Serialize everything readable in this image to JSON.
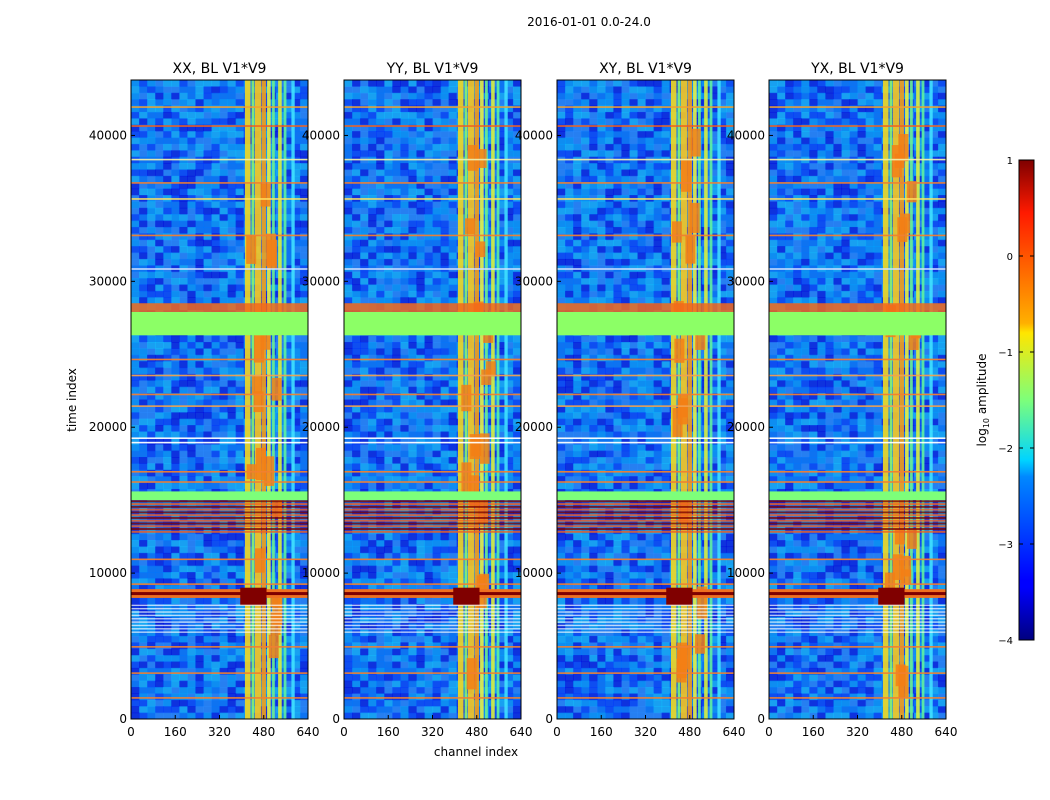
{
  "chart_data": {
    "type": "heatmap",
    "suptitle": "2016-01-01 0.0-24.0",
    "xlabel": "channel index",
    "ylabel": "time index",
    "xlim": [
      0,
      640
    ],
    "ylim": [
      0,
      43800
    ],
    "x_ticks": [
      "0",
      "160",
      "320",
      "480",
      "640"
    ],
    "y_ticks": [
      "0",
      "10000",
      "20000",
      "30000",
      "40000"
    ],
    "x_tick_values": [
      0,
      160,
      320,
      480,
      640
    ],
    "y_tick_values": [
      0,
      10000,
      20000,
      30000,
      40000
    ],
    "panels": [
      {
        "title": "XX, BL V1*V9"
      },
      {
        "title": "YY, BL V1*V9"
      },
      {
        "title": "XY, BL V1*V9"
      },
      {
        "title": "YX, BL V1*V9"
      }
    ],
    "colorbar": {
      "label_prefix": "log",
      "label_sub": "10",
      "label_suffix": " amplitude",
      "min": -4,
      "max": 1,
      "ticks": [
        "1",
        "0",
        "−1",
        "−2",
        "−3",
        "−4"
      ],
      "tick_values": [
        1,
        0,
        -1,
        -2,
        -3,
        -4
      ],
      "colormap": "jet"
    }
  }
}
